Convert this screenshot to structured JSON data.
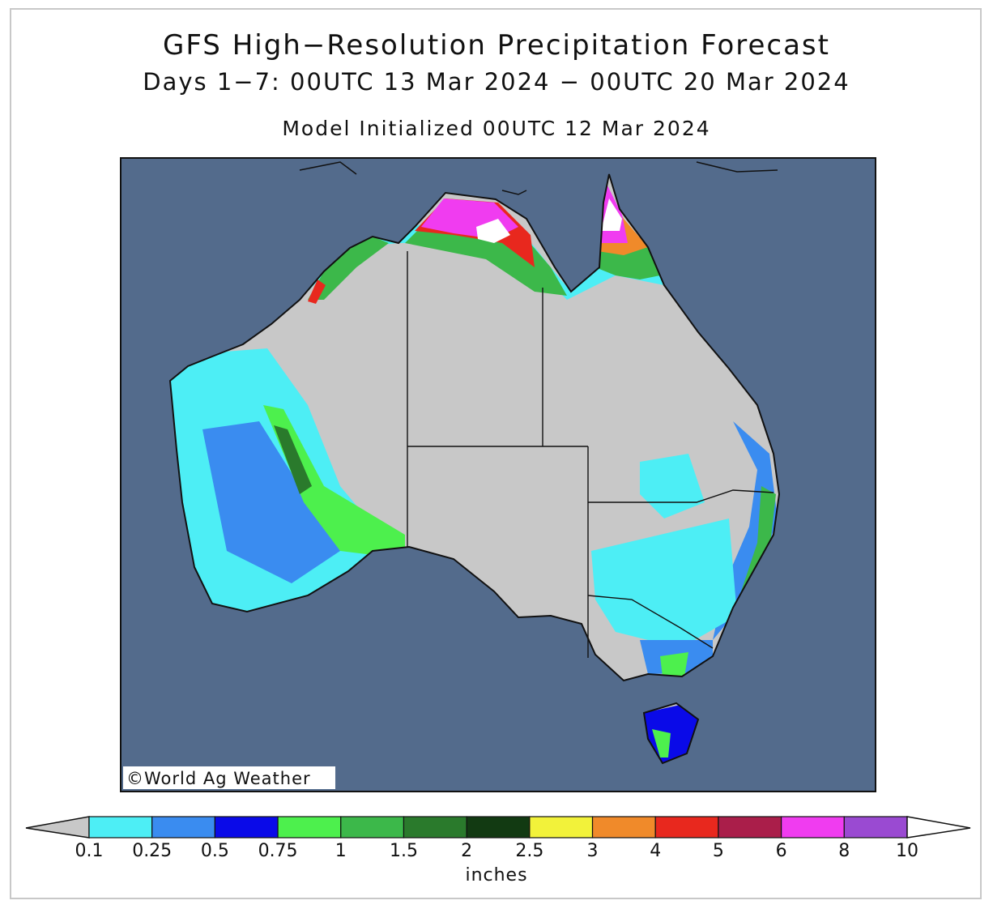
{
  "title": "GFS High−Resolution Precipitation Forecast",
  "subtitle": "Days 1−7: 00UTC 13 Mar 2024 − 00UTC 20 Mar 2024",
  "init_line": "Model Initialized 00UTC 12 Mar 2024",
  "watermark": "©World Ag Weather",
  "map": {
    "region": "Australia",
    "ocean_color": "#536b8c",
    "land_no_precip_color": "#c8c8c8",
    "border_color": "#111111"
  },
  "legend": {
    "units": "inches",
    "under_color": "#c8c8c8",
    "over_color": "#ffffff",
    "colors": [
      "#4deef5",
      "#3a8cf0",
      "#0a0ae8",
      "#4df04d",
      "#3cb84a",
      "#2a7a2c",
      "#123a12",
      "#f2f23a",
      "#f08a2a",
      "#e8281e",
      "#aa1e4a",
      "#f03cf0",
      "#9a4ad2"
    ],
    "ticks": [
      "0.1",
      "0.25",
      "0.5",
      "0.75",
      "1",
      "1.5",
      "2",
      "2.5",
      "3",
      "4",
      "5",
      "6",
      "8",
      "10"
    ]
  }
}
